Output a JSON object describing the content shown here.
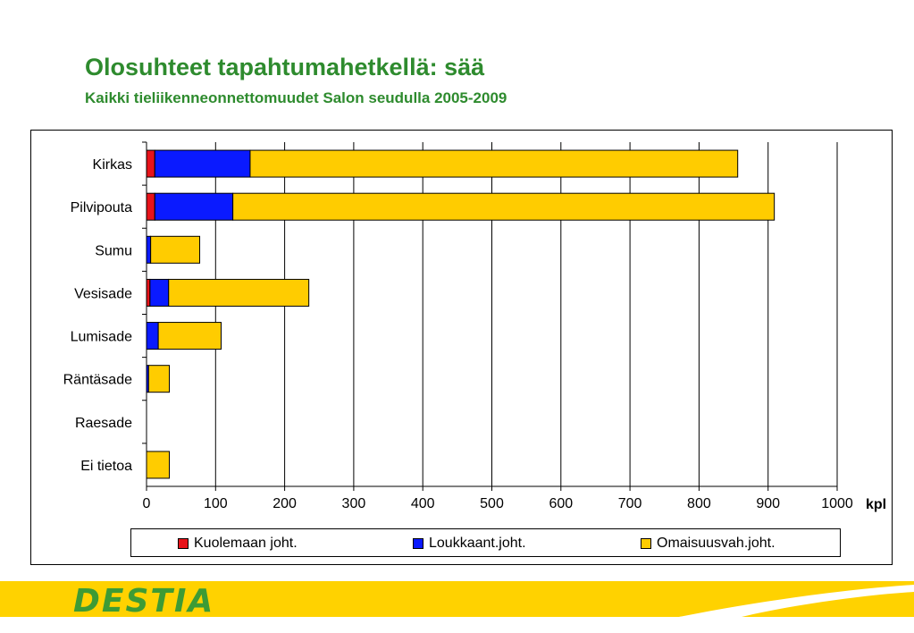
{
  "title": "Olosuhteet tapahtumahetkellä: sää",
  "subtitle": "Kaikki tieliikenneonnettomuudet Salon seudulla 2005-2009",
  "logo_text": "DESTIA",
  "colors": {
    "title_green": "#2e8b2e",
    "footer_yellow": "#ffd200",
    "logo_green": "#3d9b35"
  },
  "chart_data": {
    "type": "bar",
    "orientation": "horizontal",
    "stacked": true,
    "categories": [
      "Kirkas",
      "Pilvipouta",
      "Sumu",
      "Vesisade",
      "Lumisade",
      "Räntäsade",
      "Raesade",
      "Ei tietoa"
    ],
    "series": [
      {
        "name": "Kuolemaan joht.",
        "color": "#e8131a",
        "values": [
          12,
          12,
          0,
          5,
          0,
          0,
          0,
          0
        ]
      },
      {
        "name": "Loukkaant.joht.",
        "color": "#0a1aff",
        "values": [
          138,
          113,
          6,
          27,
          17,
          3,
          0,
          0
        ]
      },
      {
        "name": "Omaisuusvah.joht.",
        "color": "#ffcc00",
        "values": [
          706,
          784,
          71,
          203,
          91,
          30,
          0,
          33
        ]
      }
    ],
    "x_ticks": [
      "0",
      "100",
      "200",
      "300",
      "400",
      "500",
      "600",
      "700",
      "800",
      "900",
      "1000"
    ],
    "xlim": [
      0,
      1000
    ],
    "x_unit": "kpl",
    "grid": "vertical",
    "legend": "bottom"
  }
}
